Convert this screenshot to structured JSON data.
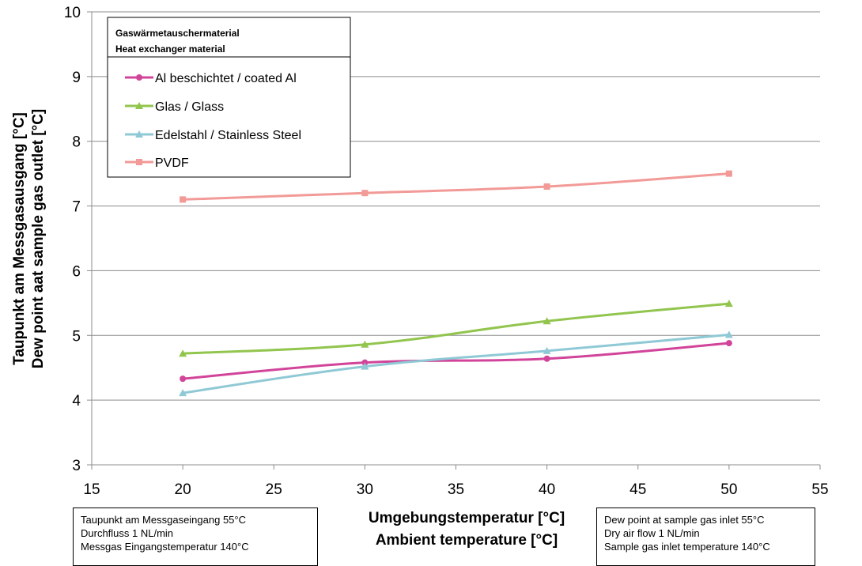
{
  "chart_data": {
    "type": "line",
    "xlabel": [
      "Umgebungstemperatur [°C]",
      "Ambient temperature [°C]"
    ],
    "ylabel": [
      "Taupunkt am Messgasausgang [°C]",
      "Dew point aat sample gas outlet [°C]"
    ],
    "xlim": [
      15,
      55
    ],
    "ylim": [
      3,
      10
    ],
    "xticks": [
      15,
      20,
      25,
      30,
      35,
      40,
      45,
      50,
      55
    ],
    "yticks": [
      3,
      4,
      5,
      6,
      7,
      8,
      9,
      10
    ],
    "grid": "horizontal",
    "legend_title": [
      "Gaswärmetauschermaterial",
      "Heat exchanger material"
    ],
    "legend_position": "top-left",
    "x": [
      20,
      30,
      40,
      50
    ],
    "series": [
      {
        "name": "Al beschichtet / coated Al",
        "values": [
          4.33,
          4.58,
          4.64,
          4.88
        ],
        "color": "#d1449a",
        "marker": "circle"
      },
      {
        "name": "Glas / Glass",
        "values": [
          4.72,
          4.86,
          5.22,
          5.49
        ],
        "color": "#92c54e",
        "marker": "triangle"
      },
      {
        "name": "Edelstahl / Stainless Steel",
        "values": [
          4.11,
          4.52,
          4.76,
          5.01
        ],
        "color": "#8fc9d6",
        "marker": "triangle"
      },
      {
        "name": "PVDF",
        "values": [
          7.1,
          7.2,
          7.3,
          7.5
        ],
        "color": "#f29a97",
        "marker": "square"
      }
    ]
  },
  "notes": {
    "left": [
      "Taupunkt am Messgaseingang 55°C",
      "Durchfluss 1 NL/min",
      "Messgas Eingangstemperatur 140°C"
    ],
    "right": [
      "Dew point at sample gas inlet 55°C",
      "Dry air flow 1 NL/min",
      "Sample gas inlet temperature 140°C"
    ]
  }
}
